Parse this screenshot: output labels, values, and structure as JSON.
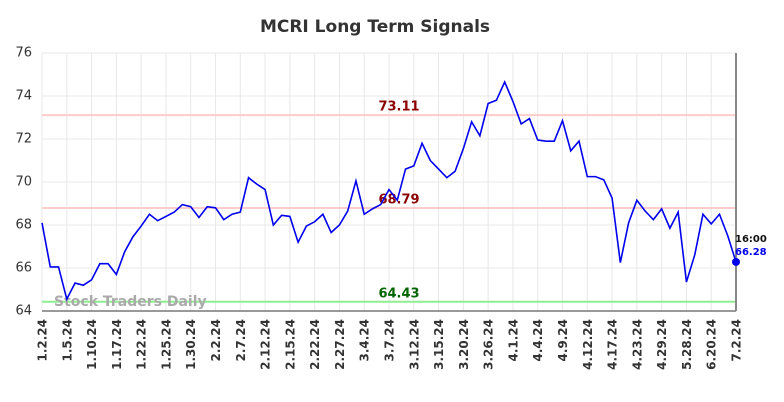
{
  "chart_data": {
    "type": "line",
    "title": "MCRI Long Term Signals",
    "categories": [
      "1.2.24",
      null,
      null,
      "1.5.24",
      null,
      null,
      "1.10.24",
      null,
      null,
      "1.17.24",
      null,
      null,
      "1.22.24",
      null,
      null,
      "1.25.24",
      null,
      null,
      "1.30.24",
      null,
      null,
      "2.2.24",
      null,
      null,
      "2.7.24",
      null,
      null,
      "2.12.24",
      null,
      null,
      "2.15.24",
      null,
      null,
      "2.22.24",
      null,
      null,
      "2.27.24",
      null,
      null,
      "3.4.24",
      null,
      null,
      "3.7.24",
      null,
      null,
      "3.12.24",
      null,
      null,
      "3.15.24",
      null,
      null,
      "3.20.24",
      null,
      null,
      "3.26.24",
      null,
      null,
      "4.1.24",
      null,
      null,
      "4.4.24",
      null,
      null,
      "4.9.24",
      null,
      null,
      "4.12.24",
      null,
      null,
      "4.17.24",
      null,
      null,
      "4.23.24",
      null,
      null,
      "4.29.24",
      null,
      null,
      "5.28.24",
      null,
      null,
      "6.20.24",
      null,
      null,
      "7.2.24"
    ],
    "values": [
      68.1,
      66.05,
      66.05,
      64.55,
      65.3,
      65.2,
      65.45,
      66.2,
      66.2,
      65.7,
      66.75,
      67.45,
      67.95,
      68.5,
      68.2,
      68.4,
      68.6,
      68.95,
      68.85,
      68.35,
      68.85,
      68.8,
      68.25,
      68.5,
      68.6,
      70.2,
      69.9,
      69.65,
      68.0,
      68.45,
      68.4,
      67.2,
      67.95,
      68.15,
      68.5,
      67.65,
      68.0,
      68.65,
      70.05,
      68.5,
      68.75,
      68.95,
      69.65,
      69.15,
      70.6,
      70.75,
      71.8,
      71.0,
      70.6,
      70.2,
      70.5,
      71.55,
      72.8,
      72.15,
      73.65,
      73.8,
      74.65,
      73.75,
      72.7,
      72.95,
      71.95,
      71.9,
      71.9,
      72.85,
      71.45,
      71.9,
      70.25,
      70.25,
      70.1,
      69.25,
      66.25,
      68.1,
      69.15,
      68.65,
      68.25,
      68.75,
      67.85,
      68.6,
      65.35,
      66.6,
      68.5,
      68.05,
      68.5,
      67.5,
      66.28
    ],
    "color": "#0000ee",
    "ylim": [
      64,
      76
    ],
    "yticks": [
      64,
      66,
      68,
      70,
      72,
      74,
      76
    ],
    "grid": true,
    "hlines": [
      {
        "value": 73.11,
        "label": "73.11",
        "color": "#ffcccc",
        "label_color": "#8b0000"
      },
      {
        "value": 68.79,
        "label": "68.79",
        "color": "#ffcccc",
        "label_color": "#8b0000"
      },
      {
        "value": 64.43,
        "label": "64.43",
        "color": "#90ee90",
        "label_color": "#006400"
      }
    ],
    "watermark": "Stock Traders Daily",
    "last_time": "16:00"
  }
}
